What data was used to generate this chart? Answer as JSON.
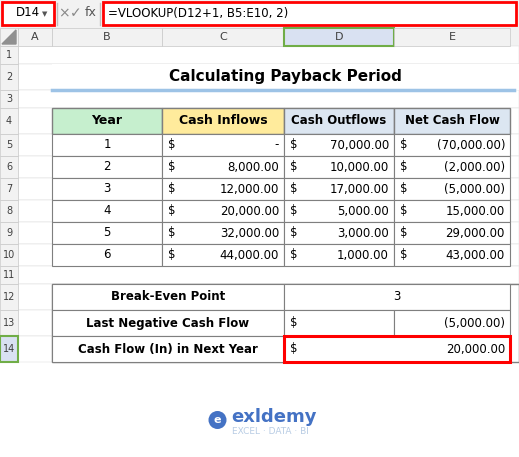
{
  "title": "Calculating Payback Period",
  "formula_bar_cell": "D14",
  "formula_bar_text": "=VLOOKUP(D12+1, B5:E10, 2)",
  "col_letters": [
    "A",
    "B",
    "C",
    "D",
    "E"
  ],
  "inflow_vals": [
    "-",
    "8,000.00",
    "12,000.00",
    "20,000.00",
    "32,000.00",
    "44,000.00"
  ],
  "outflow_vals": [
    "70,000.00",
    "10,000.00",
    "17,000.00",
    "5,000.00",
    "3,000.00",
    "1,000.00"
  ],
  "net_vals": [
    "(70,000.00)",
    "(2,000.00)",
    "(5,000.00)",
    "15,000.00",
    "29,000.00",
    "43,000.00"
  ],
  "summary_labels": [
    "Break-Even Point",
    "Last Negative Cash Flow",
    "Cash Flow (In) in Next Year"
  ],
  "summary_values": [
    "3",
    "(5,000.00)",
    "20,000.00"
  ],
  "summary_has_dollar": [
    false,
    true,
    true
  ],
  "header_bg_year": "#c6efce",
  "header_bg_inflows": "#ffeb9c",
  "header_bg_outflows": "#dce6f1",
  "header_bg_netcash": "#dce6f1",
  "red": "#ff0000",
  "green_border": "#70ad47",
  "bg_white": "#ffffff",
  "cell_bg": "#f2f2f2",
  "d_col_header_bg": "#d9e1f2",
  "title_line_color": "#9dc3e6",
  "watermark_color": "#b8cce4",
  "watermark_text_color": "#4472c4",
  "grid_dark": "#595959",
  "grid_light": "#d0d0d0",
  "fig_w": 5.19,
  "fig_h": 4.57,
  "dpi": 100
}
